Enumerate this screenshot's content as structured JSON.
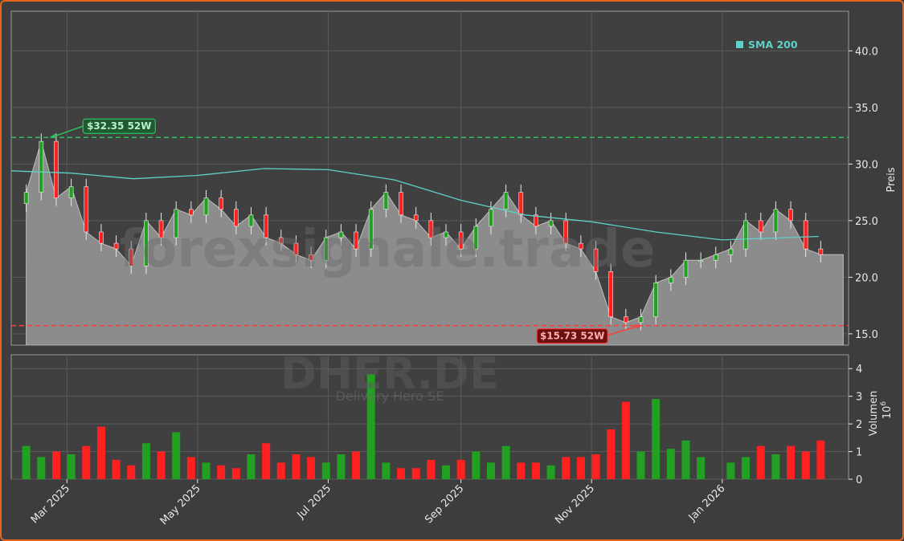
{
  "chart_data": [
    {
      "type": "candlestick",
      "ylabel": "Preis",
      "ylim": [
        14.0,
        43.5
      ],
      "y_ticks": [
        15.0,
        20.0,
        25.0,
        30.0,
        35.0,
        40.0
      ],
      "x_ticks": [
        "Mar 2025",
        "May 2025",
        "Jul 2025",
        "Sep 2025",
        "Nov 2025",
        "Jan 2026"
      ],
      "x_tick_dates": [
        "2025-03-01",
        "2025-05-01",
        "2025-07-01",
        "2025-09-01",
        "2025-11-01",
        "2026-01-01"
      ],
      "xlim": [
        "2025-02-03",
        "2026-03-01"
      ],
      "grid": true,
      "colors": {
        "up": "#22a022",
        "down": "#ff2020",
        "sma": "#5fd0c8",
        "area": "#8c8c8c",
        "high_line": "#2fbf5a",
        "low_line": "#ff3b3b"
      },
      "price_series": {
        "name": "DHER.DE",
        "dates": [
          "2025-02-10",
          "2025-02-17",
          "2025-02-24",
          "2025-03-03",
          "2025-03-10",
          "2025-03-17",
          "2025-03-24",
          "2025-03-31",
          "2025-04-07",
          "2025-04-14",
          "2025-04-21",
          "2025-04-28",
          "2025-05-05",
          "2025-05-12",
          "2025-05-19",
          "2025-05-26",
          "2025-06-02",
          "2025-06-09",
          "2025-06-16",
          "2025-06-23",
          "2025-06-30",
          "2025-07-07",
          "2025-07-14",
          "2025-07-21",
          "2025-07-28",
          "2025-08-04",
          "2025-08-11",
          "2025-08-18",
          "2025-08-25",
          "2025-09-01",
          "2025-09-08",
          "2025-09-15",
          "2025-09-22",
          "2025-09-29",
          "2025-10-06",
          "2025-10-13",
          "2025-10-20",
          "2025-10-27",
          "2025-11-03",
          "2025-11-10",
          "2025-11-17",
          "2025-11-24",
          "2025-12-01",
          "2025-12-08",
          "2025-12-15",
          "2025-12-22",
          "2025-12-29",
          "2026-01-05",
          "2026-01-12",
          "2026-01-19",
          "2026-01-26",
          "2026-02-02",
          "2026-02-09",
          "2026-02-16"
        ],
        "close": [
          27.5,
          32.0,
          27.0,
          28.0,
          24.0,
          23.0,
          22.5,
          21.0,
          25.0,
          23.5,
          26.0,
          25.5,
          27.0,
          26.0,
          24.5,
          25.5,
          23.5,
          23.0,
          22.0,
          21.5,
          23.5,
          24.0,
          22.5,
          26.0,
          27.5,
          25.5,
          25.0,
          23.5,
          24.0,
          22.5,
          24.5,
          26.0,
          27.5,
          25.5,
          24.5,
          25.0,
          23.0,
          22.5,
          20.5,
          16.5,
          16.0,
          16.5,
          19.5,
          20.0,
          21.5,
          21.5,
          22.0,
          22.5,
          25.0,
          24.0,
          26.0,
          25.0,
          22.5,
          22.0
        ],
        "volume_millions": [
          1.2,
          0.8,
          1.0,
          0.9,
          1.2,
          1.9,
          0.7,
          0.5,
          1.3,
          1.0,
          1.7,
          0.8,
          0.6,
          0.5,
          0.4,
          0.9,
          1.3,
          0.6,
          0.9,
          0.8,
          0.6,
          0.9,
          1.0,
          3.8,
          0.6,
          0.4,
          0.4,
          0.7,
          0.5,
          0.7,
          1.0,
          0.6,
          1.2,
          0.6,
          0.6,
          0.5,
          0.8,
          0.8,
          0.9,
          1.8,
          2.8,
          1.0,
          2.9,
          1.1,
          1.4,
          0.8,
          0.0,
          0.6,
          0.8,
          1.2,
          0.9,
          1.2,
          1.0,
          1.4
        ]
      },
      "sma": {
        "name": "SMA 200",
        "dates": [
          "2025-02-03",
          "2025-03-03",
          "2025-04-01",
          "2025-05-01",
          "2025-06-01",
          "2025-07-01",
          "2025-08-01",
          "2025-09-01",
          "2025-10-01",
          "2025-11-01",
          "2025-12-01",
          "2026-01-01",
          "2026-02-15"
        ],
        "values": [
          29.4,
          29.2,
          28.7,
          29.0,
          29.6,
          29.5,
          28.6,
          26.8,
          25.5,
          24.9,
          24.0,
          23.3,
          23.6
        ]
      },
      "annotations": [
        {
          "type": "hline",
          "y": 32.35,
          "label": "$32.35 52W",
          "date": "2025-02-20"
        },
        {
          "type": "hline",
          "y": 15.73,
          "label": "$15.73 52W",
          "date": "2025-11-25"
        }
      ],
      "legend": {
        "entries": [
          "SMA 200"
        ],
        "placement": "top-right"
      }
    },
    {
      "type": "bar",
      "ylabel": "Volumen",
      "y_multiplier": "10",
      "y_multiplier_exp": "6",
      "ylim": [
        0,
        4.5
      ],
      "y_ticks": [
        0,
        1,
        2,
        3,
        4
      ],
      "grid": true
    }
  ],
  "watermark": {
    "site": "forexsignale.trade",
    "ticker": "DHER.DE",
    "company": "Delivery Hero SE"
  }
}
